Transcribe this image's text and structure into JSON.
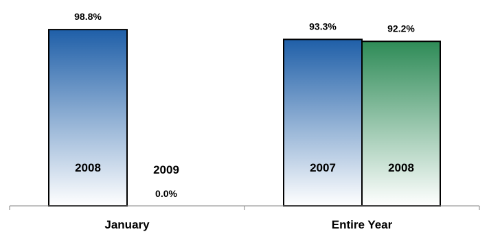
{
  "chart_data": {
    "type": "bar",
    "title": "",
    "xlabel": "",
    "ylabel": "",
    "ylim": [
      0,
      100
    ],
    "grid": false,
    "legend": "none",
    "groups": [
      {
        "label": "January",
        "bars": [
          {
            "series": "2008",
            "value": 98.8,
            "value_label": "98.8%",
            "color": "#1f5fa8"
          },
          {
            "series": "2009",
            "value": 0.0,
            "value_label": "0.0%",
            "color": "#1f5fa8"
          }
        ]
      },
      {
        "label": "Entire Year",
        "bars": [
          {
            "series": "2007",
            "value": 93.3,
            "value_label": "93.3%",
            "color": "#1f5fa8"
          },
          {
            "series": "2008",
            "value": 92.2,
            "value_label": "92.2%",
            "color": "#2e8b57"
          }
        ]
      }
    ]
  }
}
